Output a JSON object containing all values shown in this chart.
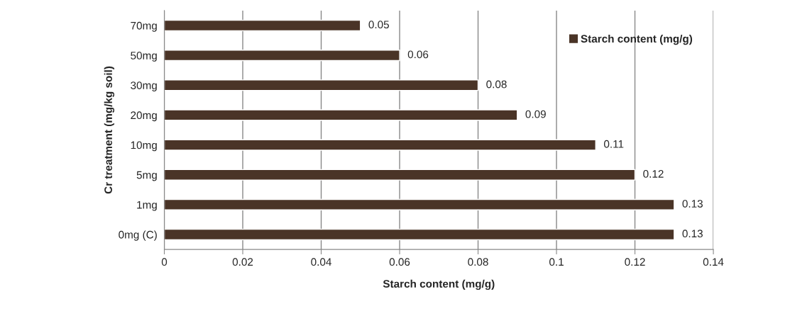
{
  "chart_data": {
    "type": "bar",
    "orientation": "horizontal",
    "xlabel": "Starch content (mg/g)",
    "ylabel": "Cr treatment (mg/kg soil)",
    "categories": [
      "70mg",
      "50mg",
      "30mg",
      "20mg",
      "10mg",
      "5mg",
      "1mg",
      "0mg (C)"
    ],
    "series": [
      {
        "name": "Starch content (mg/g)",
        "color": "#4a3427",
        "values": [
          0.05,
          0.06,
          0.08,
          0.09,
          0.11,
          0.12,
          0.13,
          0.13
        ]
      }
    ],
    "xlim": [
      0,
      0.14
    ],
    "xticks": [
      0,
      0.02,
      0.04,
      0.06,
      0.08,
      0.1,
      0.12,
      0.14
    ],
    "grid": "x",
    "legend": "top right",
    "data_labels": true
  }
}
